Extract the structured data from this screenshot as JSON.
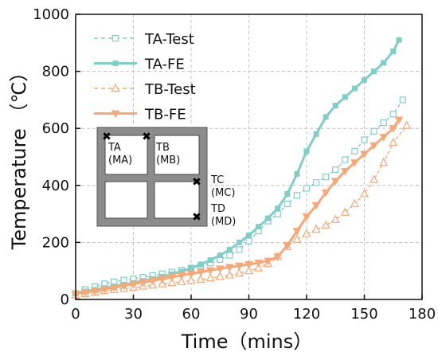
{
  "chart_data": {
    "type": "line",
    "xlabel": "Time（mins）",
    "ylabel": "Temperature （℃）",
    "xlim": [
      0,
      180
    ],
    "ylim": [
      0,
      1000
    ],
    "xticks": [
      0,
      30,
      60,
      90,
      120,
      150,
      180
    ],
    "yticks": [
      0,
      200,
      400,
      600,
      800,
      1000
    ],
    "grid": true,
    "legend_position": "top-left",
    "series": [
      {
        "name": "TA-Test",
        "color": "#7fcfc6",
        "dash": "dashed",
        "marker": "square-open",
        "x": [
          0,
          5,
          10,
          15,
          20,
          25,
          30,
          35,
          40,
          45,
          50,
          55,
          60,
          65,
          70,
          75,
          80,
          85,
          90,
          95,
          100,
          105,
          110,
          115,
          120,
          125,
          130,
          135,
          140,
          145,
          150,
          155,
          160,
          165,
          170
        ],
        "y": [
          20,
          35,
          45,
          55,
          62,
          68,
          72,
          78,
          84,
          90,
          96,
          103,
          110,
          118,
          128,
          140,
          155,
          175,
          205,
          240,
          275,
          300,
          335,
          365,
          390,
          410,
          430,
          455,
          490,
          520,
          560,
          590,
          620,
          650,
          700
        ]
      },
      {
        "name": "TA-FE",
        "color": "#7fcfc6",
        "dash": "solid",
        "marker": "square-filled",
        "x": [
          0,
          5,
          10,
          15,
          20,
          25,
          30,
          35,
          40,
          45,
          50,
          55,
          60,
          65,
          70,
          75,
          80,
          85,
          90,
          95,
          100,
          105,
          110,
          115,
          120,
          125,
          130,
          135,
          140,
          145,
          150,
          155,
          160,
          165,
          168
        ],
        "y": [
          22,
          28,
          34,
          40,
          46,
          52,
          58,
          65,
          72,
          80,
          88,
          98,
          110,
          123,
          138,
          155,
          175,
          200,
          225,
          255,
          285,
          320,
          370,
          440,
          520,
          580,
          640,
          680,
          710,
          740,
          770,
          800,
          830,
          870,
          910
        ]
      },
      {
        "name": "TB-Test",
        "color": "#f7a876",
        "dash": "dashed",
        "marker": "triangle-open",
        "x": [
          0,
          5,
          10,
          15,
          20,
          25,
          30,
          35,
          40,
          45,
          50,
          55,
          60,
          65,
          70,
          75,
          80,
          85,
          90,
          95,
          100,
          105,
          110,
          115,
          120,
          125,
          130,
          135,
          140,
          145,
          150,
          155,
          160,
          165,
          172
        ],
        "y": [
          15,
          20,
          25,
          30,
          34,
          38,
          42,
          46,
          50,
          54,
          58,
          62,
          66,
          70,
          75,
          80,
          85,
          92,
          100,
          110,
          125,
          150,
          185,
          210,
          230,
          245,
          260,
          280,
          305,
          335,
          370,
          420,
          480,
          550,
          610
        ]
      },
      {
        "name": "TB-FE",
        "color": "#f7a876",
        "dash": "solid",
        "marker": "triangle-down-filled",
        "x": [
          0,
          5,
          10,
          15,
          20,
          25,
          30,
          35,
          40,
          45,
          50,
          55,
          60,
          65,
          70,
          75,
          80,
          85,
          90,
          95,
          100,
          105,
          110,
          115,
          120,
          125,
          130,
          135,
          140,
          145,
          150,
          155,
          160,
          165,
          168
        ],
        "y": [
          20,
          25,
          30,
          36,
          42,
          48,
          54,
          60,
          66,
          72,
          78,
          84,
          90,
          96,
          102,
          108,
          113,
          118,
          123,
          128,
          135,
          150,
          190,
          240,
          290,
          330,
          375,
          415,
          450,
          480,
          510,
          540,
          570,
          600,
          630
        ]
      }
    ],
    "inset": {
      "labels": [
        {
          "id": "ta",
          "line1": "TA",
          "line2": "(MA)"
        },
        {
          "id": "tb",
          "line1": "TB",
          "line2": "(MB)"
        },
        {
          "id": "tc",
          "line1": "TC",
          "line2": "(MC)"
        },
        {
          "id": "td",
          "line1": "TD",
          "line2": "(MD)"
        }
      ]
    }
  }
}
